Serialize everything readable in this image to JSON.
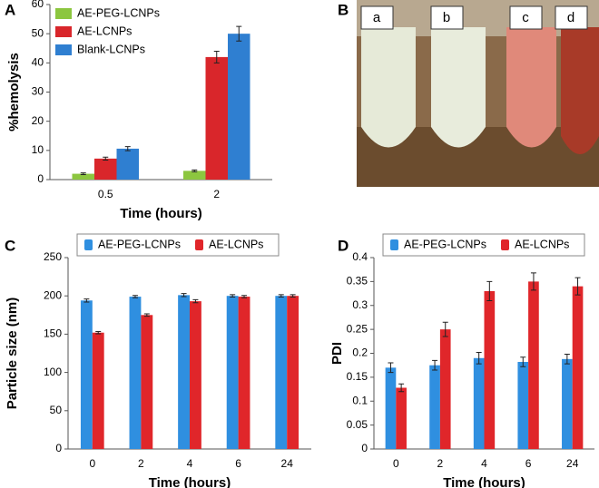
{
  "chart_data": [
    {
      "type": "bar",
      "panel_label": "A",
      "ylabel": "%hemolysis",
      "xlabel": "Time (hours)",
      "categories": [
        "0.5",
        "2"
      ],
      "ylim": [
        0,
        60
      ],
      "yticks": [
        0,
        10,
        20,
        30,
        40,
        50,
        60
      ],
      "legend": "upper left",
      "series": [
        {
          "name": "AE-PEG-LCNPs",
          "color": "#8cc63f",
          "values": [
            2,
            3
          ],
          "errors": [
            0.3,
            0.3
          ]
        },
        {
          "name": "AE-LCNPs",
          "color": "#d9262b",
          "values": [
            7.2,
            42
          ],
          "errors": [
            0.5,
            2
          ]
        },
        {
          "name": "Blank-LCNPs",
          "color": "#2f7fd1",
          "values": [
            10.6,
            50
          ],
          "errors": [
            0.7,
            2.5
          ]
        }
      ]
    },
    {
      "type": "bar",
      "panel_label": "C",
      "ylabel": "Particle size (nm)",
      "xlabel": "Time (hours)",
      "categories": [
        "0",
        "2",
        "4",
        "6",
        "24"
      ],
      "ylim": [
        0,
        250
      ],
      "yticks": [
        0,
        50,
        100,
        150,
        200,
        250
      ],
      "legend": "upper center",
      "series": [
        {
          "name": "AE-PEG-LCNPs",
          "color": "#2f8fe0",
          "values": [
            194,
            199,
            201,
            200,
            200
          ],
          "errors": [
            2,
            1.5,
            2,
            1.5,
            1.5
          ]
        },
        {
          "name": "AE-LCNPs",
          "color": "#e0262a",
          "values": [
            152,
            175,
            193,
            199,
            200
          ],
          "errors": [
            1.5,
            1.5,
            2,
            1.5,
            1.5
          ]
        }
      ]
    },
    {
      "type": "bar",
      "panel_label": "D",
      "ylabel": "PDI",
      "xlabel": "Time (hours)",
      "categories": [
        "0",
        "2",
        "4",
        "6",
        "24"
      ],
      "ylim": [
        0,
        0.4
      ],
      "yticks": [
        0,
        0.05,
        0.1,
        0.15,
        0.2,
        0.25,
        0.3,
        0.35,
        0.4
      ],
      "legend": "upper center",
      "series": [
        {
          "name": "AE-PEG-LCNPs",
          "color": "#2f8fe0",
          "values": [
            0.17,
            0.175,
            0.19,
            0.182,
            0.188
          ],
          "errors": [
            0.01,
            0.01,
            0.012,
            0.01,
            0.01
          ]
        },
        {
          "name": "AE-LCNPs",
          "color": "#e0262a",
          "values": [
            0.128,
            0.25,
            0.33,
            0.35,
            0.34
          ],
          "errors": [
            0.008,
            0.015,
            0.02,
            0.018,
            0.018
          ]
        }
      ]
    }
  ],
  "photo": {
    "panel_label": "B",
    "labels": [
      "a",
      "b",
      "c",
      "d"
    ]
  }
}
